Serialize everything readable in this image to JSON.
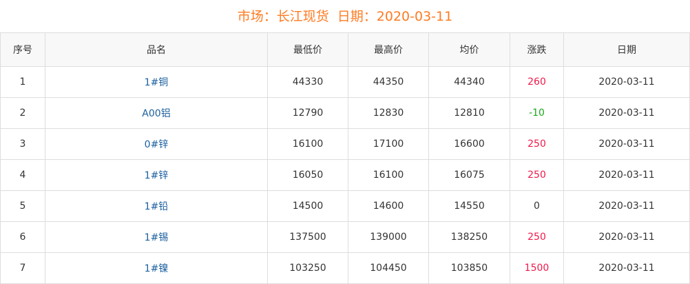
{
  "title": {
    "market": "市场：长江现货",
    "date": "日期：2020-03-11"
  },
  "columns": [
    "序号",
    "品名",
    "最低价",
    "最高价",
    "均价",
    "涨跌",
    "日期"
  ],
  "rows": [
    [
      "1",
      "1#铜",
      "44330",
      "44350",
      "44340",
      "260",
      "2020-03-11"
    ],
    [
      "2",
      "A00铝",
      "12790",
      "12830",
      "12810",
      "-10",
      "2020-03-11"
    ],
    [
      "3",
      "0#锌",
      "16100",
      "17100",
      "16600",
      "250",
      "2020-03-11"
    ],
    [
      "4",
      "1#锌",
      "16050",
      "16100",
      "16075",
      "250",
      "2020-03-11"
    ],
    [
      "5",
      "1#铅",
      "14500",
      "14600",
      "14550",
      "0",
      "2020-03-11"
    ],
    [
      "6",
      "1#锡",
      "137500",
      "139000",
      "138250",
      "250",
      "2020-03-11"
    ],
    [
      "7",
      "1#镍",
      "103250",
      "104450",
      "103850",
      "1500",
      "2020-03-11"
    ]
  ],
  "colors": {
    "title": "#ff7b21",
    "up": "#f0184a",
    "down": "#1aa81a",
    "name": "#1a5f9e"
  }
}
